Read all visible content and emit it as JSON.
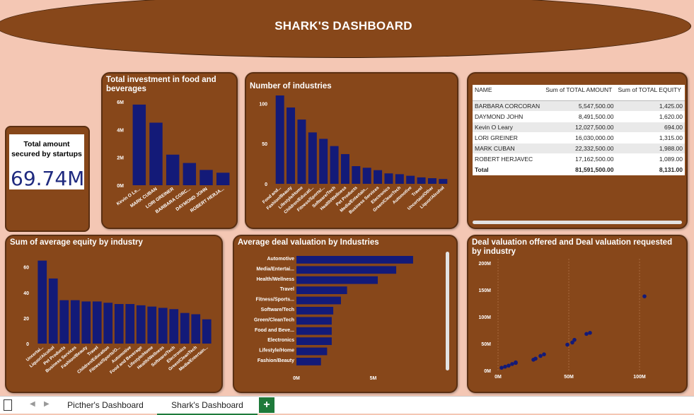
{
  "header": {
    "title": "SHARK'S DASHBOARD"
  },
  "kpi": {
    "label": "Total amount secured by startups",
    "value": "69.74M"
  },
  "colors": {
    "background": "#f4c7b4",
    "panel": "#87471a",
    "bar": "#131a78",
    "accent": "#1e7a3a"
  },
  "chart_data": [
    {
      "type": "bar",
      "title": "Total investment in food and beverages",
      "categories": [
        "Kevin O Le...",
        "MARK CUBAN",
        "LORI GREINER",
        "BARBARA CORC...",
        "DAYMOND JOHN",
        "ROBERT HERJA..."
      ],
      "values": [
        5.8,
        4.5,
        2.2,
        1.6,
        1.1,
        0.9
      ],
      "yticks": [
        "6M",
        "4M",
        "2M",
        "0M"
      ],
      "ylim": [
        0,
        6
      ]
    },
    {
      "type": "bar",
      "title": "Number of industries",
      "categories": [
        "Food and...",
        "Fashion/Beauty",
        "Lifestyle/Home",
        "Children/Educati...",
        "Fitness/Sports/...",
        "Software/Tech",
        "Health/Wellness",
        "Pet Products",
        "Media/Entertain...",
        "Business Services",
        "Electronics",
        "Green/CleanTech",
        "Automotive",
        "Travel",
        "Uncertain/Other",
        "Liquor/Alcohol"
      ],
      "values": [
        110,
        95,
        80,
        64,
        56,
        47,
        37,
        22,
        20,
        17,
        13,
        12,
        10,
        8,
        7,
        6
      ],
      "yticks": [
        "100",
        "50",
        "0"
      ],
      "ylim": [
        0,
        125
      ]
    },
    {
      "type": "bar",
      "title": "Sum of average equity by industry",
      "categories": [
        "Uncertai...",
        "Liquor/Alcohol",
        "Pet Products",
        "Business Services",
        "Fashion/Beauty",
        "Travel",
        "Children/Education",
        "Fitness/Sports/O...",
        "Automotive",
        "Food and Beverage",
        "Lifestyle/Home",
        "Health/Wellness",
        "Software/Tech",
        "Electronics",
        "Green/CleanTech",
        "Media/Entertain..."
      ],
      "values": [
        65,
        51,
        34,
        34,
        33,
        33,
        32,
        31,
        31,
        30,
        29,
        28,
        27,
        24,
        23,
        19
      ],
      "yticks": [
        "60",
        "40",
        "20",
        "0"
      ],
      "ylim": [
        0,
        72
      ]
    },
    {
      "type": "bar",
      "orientation": "horizontal",
      "title": "Average deal valuation by Industries",
      "categories": [
        "Automotive",
        "Media/Entertai...",
        "Health/Wellness",
        "Travel",
        "Fitness/Sports...",
        "Software/Tech",
        "Green/CleanTech",
        "Food and Beve...",
        "Electronics",
        "Lifestyle/Home",
        "Fashion/Beauty"
      ],
      "values": [
        7.6,
        6.5,
        5.3,
        3.3,
        2.9,
        2.4,
        2.3,
        2.3,
        2.3,
        2.0,
        1.6
      ],
      "xticks": [
        "0M",
        "5M"
      ],
      "xlim": [
        0,
        10
      ]
    },
    {
      "type": "scatter",
      "title": "Deal valuation offered and Deal valuation requested by industry",
      "x": [
        0.5,
        1.0,
        1.5,
        2.0,
        2.5,
        2.5,
        5.0,
        5.3,
        6.0,
        6.5,
        9.8,
        10.5,
        10.8,
        12.5,
        13.0,
        20.7
      ],
      "y": [
        5,
        7,
        9,
        12,
        14,
        15,
        20,
        22,
        27,
        30,
        48,
        52,
        57,
        68,
        70,
        138
      ],
      "xticks": [
        "0M",
        "50M",
        "100M"
      ],
      "yticks": [
        "200M",
        "150M",
        "100M",
        "50M",
        "0M"
      ],
      "xlim": [
        0,
        25
      ],
      "ylim": [
        0,
        200
      ]
    }
  ],
  "table": {
    "columns": [
      "NAME",
      "Sum of TOTAL AMOUNT",
      "Sum of TOTAL EQUITY"
    ],
    "rows": [
      [
        "BARBARA CORCORAN",
        "5,547,500.00",
        "1,425.00"
      ],
      [
        "DAYMOND JOHN",
        "8,491,500.00",
        "1,620.00"
      ],
      [
        "Kevin O Leary",
        "12,027,500.00",
        "694.00"
      ],
      [
        "LORI GREINER",
        "16,030,000.00",
        "1,315.00"
      ],
      [
        "MARK CUBAN",
        "22,332,500.00",
        "1,988.00"
      ],
      [
        "ROBERT HERJAVEC",
        "17,162,500.00",
        "1,089.00"
      ]
    ],
    "total": [
      "Total",
      "81,591,500.00",
      "8,131.00"
    ]
  },
  "tabs": {
    "items": [
      "Picther's Dashboard",
      "Shark's Dashboard"
    ],
    "add": "+"
  }
}
